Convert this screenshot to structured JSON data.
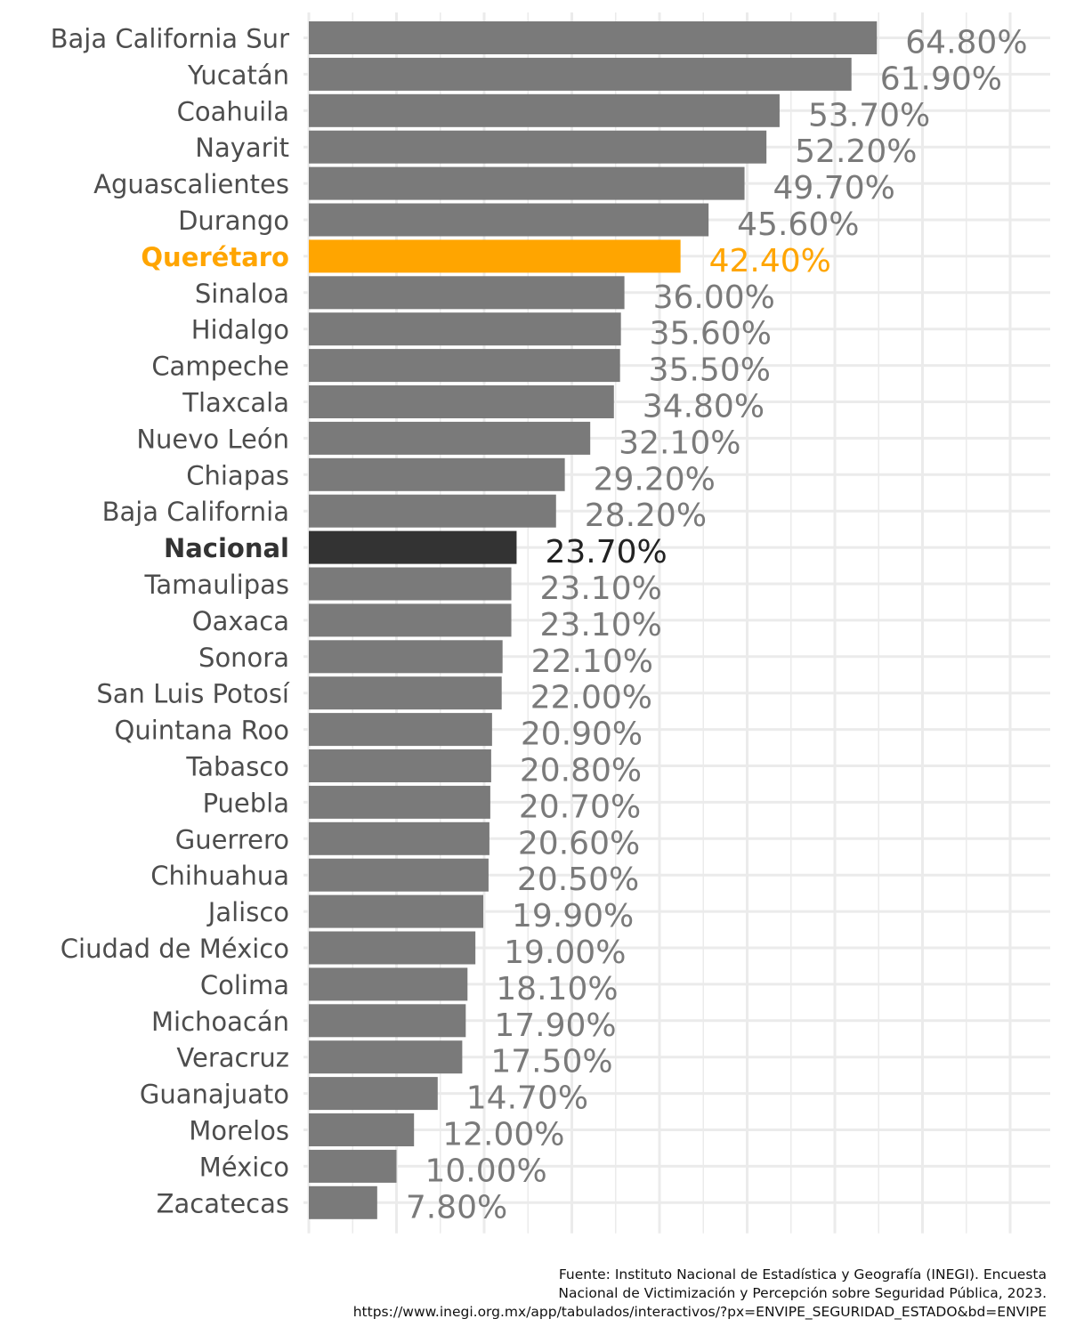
{
  "chart_data": {
    "type": "bar",
    "orientation": "horizontal",
    "categories": [
      "Baja California Sur",
      "Yucatán",
      "Coahuila",
      "Nayarit",
      "Aguascalientes",
      "Durango",
      "Querétaro",
      "Sinaloa",
      "Hidalgo",
      "Campeche",
      "Tlaxcala",
      "Nuevo León",
      "Chiapas",
      "Baja California",
      "Nacional",
      "Tamaulipas",
      "Oaxaca",
      "Sonora",
      "San Luis Potosí",
      "Quintana Roo",
      "Tabasco",
      "Puebla",
      "Guerrero",
      "Chihuahua",
      "Jalisco",
      "Ciudad de México",
      "Colima",
      "Michoacán",
      "Veracruz",
      "Guanajuato",
      "Morelos",
      "México",
      "Zacatecas"
    ],
    "values": [
      64.8,
      61.9,
      53.7,
      52.2,
      49.7,
      45.6,
      42.4,
      36.0,
      35.6,
      35.5,
      34.8,
      32.1,
      29.2,
      28.2,
      23.7,
      23.1,
      23.1,
      22.1,
      22.0,
      20.9,
      20.8,
      20.7,
      20.6,
      20.5,
      19.9,
      19.0,
      18.1,
      17.9,
      17.5,
      14.7,
      12.0,
      10.0,
      7.8
    ],
    "value_labels": [
      "64.80%",
      "61.90%",
      "53.70%",
      "52.20%",
      "49.70%",
      "45.60%",
      "42.40%",
      "36.00%",
      "35.60%",
      "35.50%",
      "34.80%",
      "32.10%",
      "29.20%",
      "28.20%",
      "23.70%",
      "23.10%",
      "23.10%",
      "22.10%",
      "22.00%",
      "20.90%",
      "20.80%",
      "20.70%",
      "20.60%",
      "20.50%",
      "19.90%",
      "19.00%",
      "18.10%",
      "17.90%",
      "17.50%",
      "14.70%",
      "12.00%",
      "10.00%",
      "7.80%"
    ],
    "highlight": {
      "Querétaro": "#FFA500",
      "Nacional": "#333333"
    },
    "default_color": "#7A7A7A",
    "xlim": [
      0,
      80
    ],
    "grid": true,
    "title": "",
    "xlabel": "",
    "ylabel": ""
  },
  "source": {
    "line1": "Fuente: Instituto Nacional de Estadística y Geografía (INEGI). Encuesta",
    "line2": "Nacional de Victimización y Percepción sobre Seguridad Pública, 2023.",
    "line3": "https://www.inegi.org.mx/app/tabulados/interactivos/?px=ENVIPE_SEGURIDAD_ESTADO&bd=ENVIPE"
  }
}
